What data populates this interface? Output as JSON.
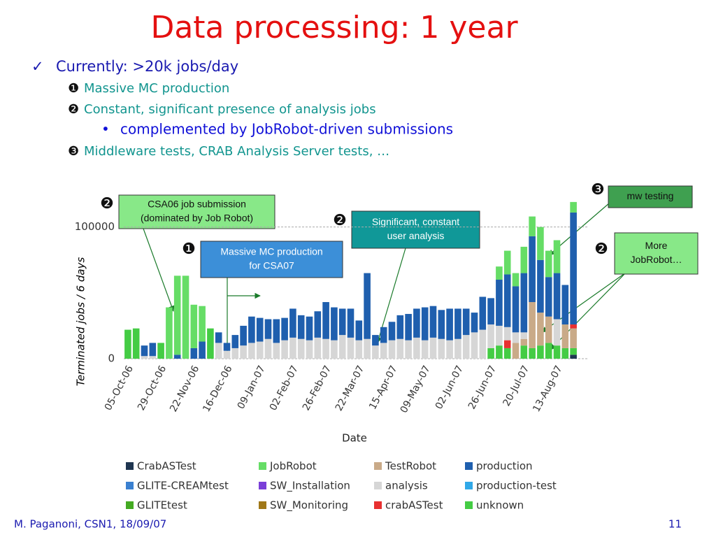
{
  "slide": {
    "title": "Data processing: 1 year",
    "bullets": [
      {
        "marker": "✓",
        "text": "Currently: >20k jobs/day"
      },
      {
        "marker": "❶",
        "text": "Massive MC production"
      },
      {
        "marker": "❷",
        "text": "Constant, significant presence of analysis jobs"
      },
      {
        "marker": "•",
        "text": "complemented by JobRobot-driven submissions"
      },
      {
        "marker": "❸",
        "text": "Middleware tests, CRAB Analysis Server tests, …"
      }
    ],
    "annotations": [
      {
        "badge": "❷",
        "lines": [
          "CSA06 job submission",
          "(dominated by Job Robot)"
        ]
      },
      {
        "badge": "❶",
        "lines": [
          "Massive MC production",
          "for CSA07"
        ]
      },
      {
        "badge": "❷",
        "lines": [
          "Significant, constant",
          "user analysis"
        ]
      },
      {
        "badge": "❸",
        "lines": [
          "mw testing"
        ]
      },
      {
        "badge": "❷",
        "lines": [
          "More",
          "JobRobot…"
        ]
      }
    ],
    "footer": {
      "author": "M. Paganoni, CSN1, 18/09/07",
      "page": "11"
    }
  },
  "chart_data": {
    "type": "stacked_bar",
    "xlabel": "Date",
    "ylabel": "Terminated jobs / 6 days",
    "categories": [
      "05-Oct-06",
      null,
      null,
      null,
      "29-Oct-06",
      null,
      null,
      null,
      "22-Nov-06",
      null,
      null,
      null,
      "16-Dec-06",
      null,
      null,
      null,
      "09-Jan-07",
      null,
      null,
      null,
      "02-Feb-07",
      null,
      null,
      null,
      "26-Feb-07",
      null,
      null,
      null,
      "22-Mar-07",
      null,
      null,
      null,
      "15-Apr-07",
      null,
      null,
      null,
      "09-May-07",
      null,
      null,
      null,
      "02-Jun-07",
      null,
      null,
      null,
      "26-Jun-07",
      null,
      null,
      null,
      "20-Jul-07",
      null,
      null,
      null,
      "13-Aug-07",
      null,
      null
    ],
    "ylim": [
      0,
      120000
    ],
    "yticks": [
      0,
      100000
    ],
    "grid": true,
    "series": [
      {
        "name": "CrabASTest",
        "color": "#1f3550",
        "values": [
          0,
          0,
          0,
          0,
          0,
          0,
          0,
          0,
          0,
          0,
          0,
          0,
          0,
          0,
          0,
          0,
          0,
          0,
          0,
          0,
          0,
          0,
          0,
          0,
          0,
          0,
          0,
          0,
          0,
          0,
          0,
          0,
          0,
          0,
          0,
          0,
          0,
          0,
          0,
          0,
          0,
          0,
          0,
          0,
          0,
          0,
          0,
          0,
          0,
          0,
          0,
          0,
          0,
          0,
          3000
        ]
      },
      {
        "name": "JobRobot",
        "color": "#66dd66",
        "values": [
          0,
          0,
          0,
          0,
          0,
          39000,
          60000,
          63000,
          33000,
          27000,
          0,
          0,
          0,
          0,
          0,
          0,
          0,
          0,
          0,
          0,
          0,
          0,
          0,
          0,
          0,
          0,
          0,
          0,
          0,
          0,
          0,
          0,
          0,
          0,
          0,
          0,
          0,
          0,
          0,
          0,
          0,
          0,
          0,
          0,
          0,
          10000,
          18000,
          10000,
          20000,
          15000,
          25000,
          20000,
          25000,
          0,
          8000
        ]
      },
      {
        "name": "TestRobot",
        "color": "#c9aa88",
        "values": [
          0,
          0,
          0,
          0,
          0,
          0,
          0,
          0,
          0,
          0,
          0,
          0,
          0,
          0,
          0,
          0,
          0,
          0,
          0,
          0,
          0,
          0,
          0,
          0,
          0,
          0,
          0,
          0,
          0,
          0,
          0,
          0,
          0,
          0,
          0,
          0,
          0,
          0,
          0,
          0,
          0,
          0,
          0,
          0,
          0,
          0,
          0,
          12000,
          5000,
          35000,
          25000,
          20000,
          0,
          18000,
          15000
        ]
      },
      {
        "name": "production",
        "color": "#1f5fae",
        "values": [
          0,
          0,
          8000,
          10000,
          0,
          0,
          3000,
          0,
          8000,
          13000,
          0,
          8000,
          6000,
          10000,
          15000,
          20000,
          18000,
          15000,
          18000,
          17000,
          22000,
          18000,
          18000,
          20000,
          28000,
          25000,
          20000,
          22000,
          15000,
          50000,
          8000,
          12000,
          14000,
          18000,
          20000,
          22000,
          25000,
          24000,
          22000,
          24000,
          23000,
          20000,
          15000,
          25000,
          20000,
          35000,
          40000,
          35000,
          45000,
          50000,
          40000,
          30000,
          35000,
          30000,
          85000
        ]
      },
      {
        "name": "GLITE-CREAMtest",
        "color": "#3a80d0",
        "values": [
          0,
          0,
          0,
          0,
          0,
          0,
          0,
          0,
          0,
          0,
          0,
          0,
          0,
          0,
          0,
          0,
          0,
          0,
          0,
          0,
          0,
          0,
          0,
          0,
          0,
          0,
          0,
          0,
          0,
          0,
          0,
          0,
          0,
          0,
          0,
          0,
          0,
          0,
          0,
          0,
          0,
          0,
          0,
          0,
          0,
          0,
          0,
          0,
          0,
          0,
          0,
          0,
          0,
          0,
          0
        ]
      },
      {
        "name": "SW_Installation",
        "color": "#7a3fd8",
        "values": [
          0,
          0,
          0,
          0,
          0,
          0,
          0,
          0,
          0,
          0,
          0,
          0,
          0,
          0,
          0,
          0,
          0,
          0,
          0,
          0,
          0,
          0,
          0,
          0,
          0,
          0,
          0,
          0,
          0,
          0,
          0,
          0,
          0,
          0,
          0,
          0,
          0,
          0,
          0,
          0,
          0,
          0,
          0,
          0,
          0,
          0,
          0,
          0,
          0,
          0,
          0,
          0,
          0,
          0,
          0
        ]
      },
      {
        "name": "analysis",
        "color": "#d6d6d6",
        "values": [
          0,
          0,
          2000,
          2000,
          0,
          0,
          0,
          0,
          0,
          0,
          0,
          12000,
          6000,
          8000,
          10000,
          12000,
          13000,
          15000,
          12000,
          14000,
          16000,
          15000,
          14000,
          16000,
          15000,
          14000,
          18000,
          16000,
          14000,
          15000,
          10000,
          12000,
          14000,
          15000,
          14000,
          16000,
          14000,
          16000,
          15000,
          14000,
          15000,
          18000,
          20000,
          22000,
          18000,
          15000,
          10000,
          8000,
          5000,
          0,
          0,
          0,
          20000,
          0,
          0
        ]
      },
      {
        "name": "production-test",
        "color": "#30a8e8",
        "values": [
          0,
          0,
          0,
          0,
          0,
          0,
          0,
          0,
          0,
          0,
          0,
          0,
          0,
          0,
          0,
          0,
          0,
          0,
          0,
          0,
          0,
          0,
          0,
          0,
          0,
          0,
          0,
          0,
          0,
          0,
          0,
          0,
          0,
          0,
          0,
          0,
          0,
          0,
          0,
          0,
          0,
          0,
          0,
          0,
          0,
          0,
          0,
          0,
          0,
          0,
          0,
          0,
          0,
          0,
          0
        ]
      },
      {
        "name": "GLITEtest",
        "color": "#44aa22",
        "values": [
          0,
          0,
          0,
          0,
          0,
          0,
          0,
          0,
          0,
          0,
          0,
          0,
          0,
          0,
          0,
          0,
          0,
          0,
          0,
          0,
          0,
          0,
          0,
          0,
          0,
          0,
          0,
          0,
          0,
          0,
          0,
          0,
          0,
          0,
          0,
          0,
          0,
          0,
          0,
          0,
          0,
          0,
          0,
          0,
          0,
          0,
          0,
          0,
          0,
          0,
          0,
          0,
          0,
          0,
          0
        ]
      },
      {
        "name": "SW_Monitoring",
        "color": "#a07818",
        "values": [
          0,
          0,
          0,
          0,
          0,
          0,
          0,
          0,
          0,
          0,
          0,
          0,
          0,
          0,
          0,
          0,
          0,
          0,
          0,
          0,
          0,
          0,
          0,
          0,
          0,
          0,
          0,
          0,
          0,
          0,
          0,
          0,
          0,
          0,
          0,
          0,
          0,
          0,
          0,
          0,
          0,
          0,
          0,
          0,
          0,
          0,
          0,
          0,
          0,
          0,
          0,
          0,
          0,
          0,
          0
        ]
      },
      {
        "name": "crabASTest",
        "color": "#e83030",
        "values": [
          0,
          0,
          0,
          0,
          0,
          0,
          0,
          0,
          0,
          0,
          0,
          0,
          0,
          0,
          0,
          0,
          0,
          0,
          0,
          0,
          0,
          0,
          0,
          0,
          0,
          0,
          0,
          0,
          0,
          0,
          0,
          0,
          0,
          0,
          0,
          0,
          0,
          0,
          0,
          0,
          0,
          0,
          0,
          0,
          0,
          0,
          6000,
          0,
          0,
          0,
          0,
          0,
          0,
          0,
          3000
        ]
      },
      {
        "name": "unknown",
        "color": "#44cc44",
        "values": [
          22000,
          23000,
          0,
          0,
          12000,
          0,
          0,
          0,
          0,
          0,
          23000,
          0,
          0,
          0,
          0,
          0,
          0,
          0,
          0,
          0,
          0,
          0,
          0,
          0,
          0,
          0,
          0,
          0,
          0,
          0,
          0,
          0,
          0,
          0,
          0,
          0,
          0,
          0,
          0,
          0,
          0,
          0,
          0,
          0,
          8000,
          10000,
          8000,
          0,
          10000,
          8000,
          10000,
          12000,
          10000,
          8000,
          5000
        ]
      }
    ]
  }
}
